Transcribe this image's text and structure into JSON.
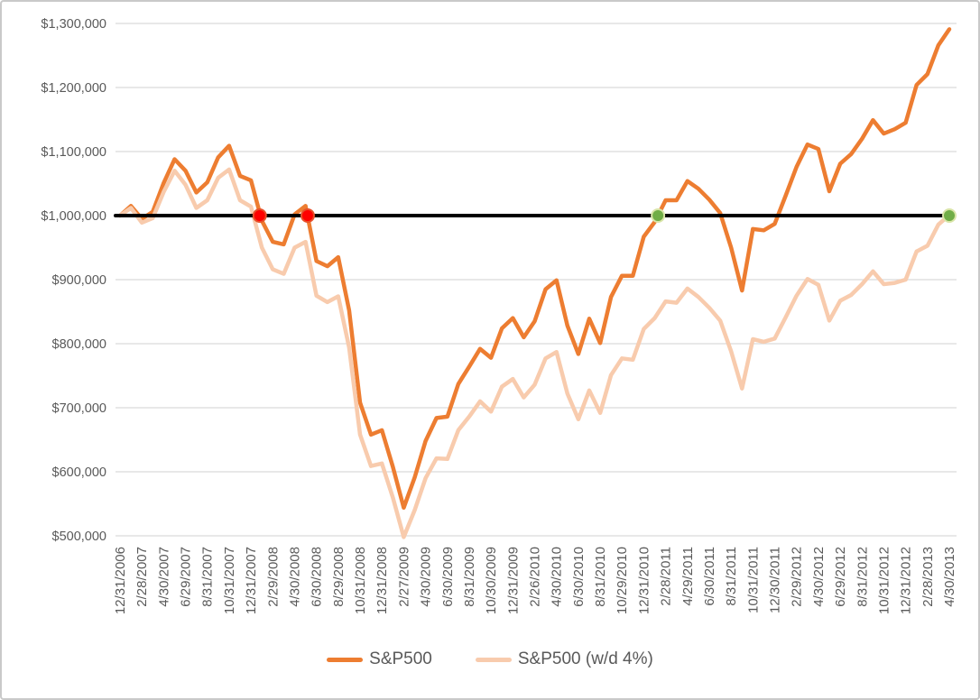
{
  "chart_data": {
    "type": "line",
    "title": "",
    "xlabel": "",
    "ylabel": "",
    "grid": true,
    "legend_position": "bottom",
    "y_axis": {
      "min": 500000,
      "max": 1300000,
      "step": 100000,
      "tick_labels": [
        "$500,000",
        "$600,000",
        "$700,000",
        "$800,000",
        "$900,000",
        "$1,000,000",
        "$1,100,000",
        "$1,200,000",
        "$1,300,000"
      ]
    },
    "x_tick_labels": [
      "12/31/2006",
      "2/28/2007",
      "4/30/2007",
      "6/29/2007",
      "8/31/2007",
      "10/31/2007",
      "12/31/2007",
      "2/29/2008",
      "4/30/2008",
      "6/30/2008",
      "8/29/2008",
      "10/31/2008",
      "12/31/2008",
      "2/27/2009",
      "4/30/2009",
      "6/30/2009",
      "8/31/2009",
      "10/30/2009",
      "12/31/2009",
      "2/26/2010",
      "4/30/2010",
      "6/30/2010",
      "8/31/2010",
      "10/29/2010",
      "12/31/2010",
      "2/28/2011",
      "4/29/2011",
      "6/30/2011",
      "8/31/2011",
      "10/31/2011",
      "12/30/2011",
      "2/29/2012",
      "4/30/2012",
      "6/29/2012",
      "8/31/2012",
      "10/31/2012",
      "12/31/2012",
      "2/28/2013",
      "4/30/2013"
    ],
    "x_label_every_n_months": 2,
    "months_total": 76,
    "series": [
      {
        "name": "S&P500",
        "color": "#ED7D31",
        "line_width": 4.5,
        "values": [
          1000000,
          1015000,
          995000,
          1006000,
          1051000,
          1088000,
          1070000,
          1036000,
          1052000,
          1091000,
          1109000,
          1062000,
          1055000,
          992000,
          959000,
          955000,
          1002000,
          1015000,
          929000,
          921000,
          935000,
          852000,
          708000,
          658000,
          665000,
          608000,
          544000,
          591000,
          648000,
          684000,
          686000,
          737000,
          764000,
          792000,
          778000,
          824000,
          840000,
          810000,
          835000,
          885000,
          899000,
          828000,
          784000,
          839000,
          801000,
          873000,
          906000,
          906000,
          967000,
          990000,
          1024000,
          1024000,
          1054000,
          1042000,
          1025000,
          1004000,
          950000,
          883000,
          979000,
          977000,
          987000,
          1031000,
          1076000,
          1111000,
          1104000,
          1038000,
          1081000,
          1096000,
          1120000,
          1149000,
          1128000,
          1135000,
          1145000,
          1204000,
          1221000,
          1266000,
          1291000
        ]
      },
      {
        "name": "S&P500 (w/d 4%)",
        "color": "#F8CBAD",
        "line_width": 4.5,
        "values": [
          1000000,
          1012000,
          989000,
          996000,
          1037000,
          1070000,
          1048000,
          1012000,
          1024000,
          1059000,
          1072000,
          1024000,
          1014000,
          950000,
          916000,
          909000,
          950000,
          959000,
          875000,
          865000,
          874000,
          794000,
          658000,
          609000,
          613000,
          560000,
          498000,
          540000,
          590000,
          621000,
          620000,
          665000,
          686000,
          710000,
          694000,
          733000,
          745000,
          716000,
          736000,
          777000,
          787000,
          722000,
          682000,
          727000,
          692000,
          751000,
          777000,
          775000,
          823000,
          840000,
          866000,
          864000,
          886000,
          873000,
          856000,
          836000,
          788000,
          730000,
          807000,
          803000,
          808000,
          841000,
          875000,
          901000,
          892000,
          836000,
          867000,
          876000,
          893000,
          913000,
          893000,
          895000,
          900000,
          944000,
          953000,
          986000,
          1001000
        ]
      }
    ],
    "baseline": {
      "value": 1000000,
      "color": "#000000",
      "width": 4,
      "end_month": 76
    },
    "markers": [
      {
        "type": "loss-crossing",
        "color": "#FF0000",
        "ring": "#E8502A",
        "month": 12.8,
        "value": 1000000
      },
      {
        "type": "loss-crossing",
        "color": "#FF0000",
        "ring": "#E8502A",
        "month": 17.2,
        "value": 1000000
      },
      {
        "type": "recovery-crossing",
        "color": "#70AD47",
        "ring": "#D9E5A8",
        "month": 49.3,
        "value": 1000000
      },
      {
        "type": "recovery-crossing",
        "color": "#70AD47",
        "ring": "#D9E5A8",
        "month": 76,
        "value": 1000000
      }
    ],
    "legend": [
      {
        "label": "S&P500",
        "color": "#ED7D31"
      },
      {
        "label": "S&P500 (w/d 4%)",
        "color": "#F8CBAD"
      }
    ]
  },
  "style": {
    "gridline_color": "#D9D9D9",
    "label_color": "#595959",
    "background": "#FFFFFF",
    "border_color": "#C9C9C9"
  }
}
